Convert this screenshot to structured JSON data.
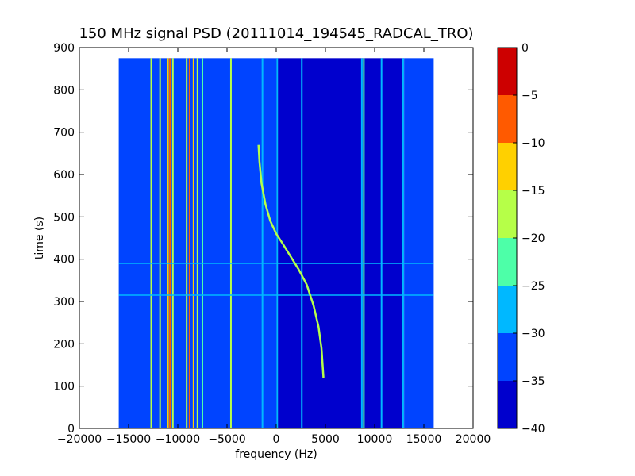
{
  "chart_data": {
    "type": "heatmap",
    "title": "150 MHz signal PSD (20111014_194545_RADCAL_TRO)",
    "xlabel": "frequency (Hz)",
    "ylabel": "time (s)",
    "xlim": [
      -20000,
      20000
    ],
    "ylim": [
      0,
      900
    ],
    "xticks": [
      -20000,
      -15000,
      -10000,
      -5000,
      0,
      5000,
      10000,
      15000,
      20000
    ],
    "yticks": [
      0,
      100,
      200,
      300,
      400,
      500,
      600,
      700,
      800,
      900
    ],
    "data_extent": {
      "x": [
        -16000,
        16000
      ],
      "y": [
        0,
        875
      ]
    },
    "grid": false,
    "colorbar": {
      "ticks": [
        0,
        -5,
        -10,
        -15,
        -20,
        -25,
        -30,
        -35,
        -40
      ],
      "levels": [
        {
          "range": [
            -40,
            -35
          ],
          "color": "#0000cd"
        },
        {
          "range": [
            -35,
            -30
          ],
          "color": "#0044ff"
        },
        {
          "range": [
            -30,
            -25
          ],
          "color": "#00b8ff"
        },
        {
          "range": [
            -25,
            -20
          ],
          "color": "#4dffa8"
        },
        {
          "range": [
            -20,
            -15
          ],
          "color": "#b6ff48"
        },
        {
          "range": [
            -15,
            -10
          ],
          "color": "#ffd000"
        },
        {
          "range": [
            -10,
            -5
          ],
          "color": "#ff5a00"
        },
        {
          "range": [
            -5,
            0
          ],
          "color": "#cd0000"
        }
      ]
    },
    "background_regions": [
      {
        "x": [
          -16000,
          0
        ],
        "level": -30
      },
      {
        "x": [
          0,
          13000
        ],
        "level": -35
      },
      {
        "x": [
          13000,
          16000
        ],
        "level": -30
      }
    ],
    "vertical_lines": [
      {
        "x": -12700,
        "level": -15
      },
      {
        "x": -11800,
        "level": -15
      },
      {
        "x": -11000,
        "level": -10
      },
      {
        "x": -10800,
        "level": -5
      },
      {
        "x": -10500,
        "level": -15
      },
      {
        "x": -9100,
        "level": -15
      },
      {
        "x": -8800,
        "level": -5
      },
      {
        "x": -8400,
        "level": -10
      },
      {
        "x": -8000,
        "level": -15
      },
      {
        "x": -7500,
        "level": -20
      },
      {
        "x": -4600,
        "level": -15
      },
      {
        "x": -1400,
        "level": -25
      },
      {
        "x": 100,
        "level": -25
      },
      {
        "x": 2600,
        "level": -25
      },
      {
        "x": 8700,
        "level": -25
      },
      {
        "x": 8900,
        "level": -20
      },
      {
        "x": 10700,
        "level": -25
      },
      {
        "x": 12900,
        "level": -25
      }
    ],
    "drifting_signal": {
      "level": -15,
      "points": [
        {
          "f": -1800,
          "t": 670
        },
        {
          "f": -1700,
          "t": 630
        },
        {
          "f": -1500,
          "t": 580
        },
        {
          "f": -1100,
          "t": 530
        },
        {
          "f": -600,
          "t": 490
        },
        {
          "f": 0,
          "t": 460
        },
        {
          "f": 700,
          "t": 435
        },
        {
          "f": 1500,
          "t": 405
        },
        {
          "f": 2300,
          "t": 375
        },
        {
          "f": 3100,
          "t": 340
        },
        {
          "f": 3800,
          "t": 290
        },
        {
          "f": 4300,
          "t": 240
        },
        {
          "f": 4600,
          "t": 190
        },
        {
          "f": 4800,
          "t": 120
        }
      ]
    },
    "horizontal_lines": [
      {
        "t": 390,
        "x": [
          -16000,
          16000
        ],
        "level": -25
      },
      {
        "t": 315,
        "x": [
          -16000,
          16000
        ],
        "level": -25
      }
    ]
  }
}
